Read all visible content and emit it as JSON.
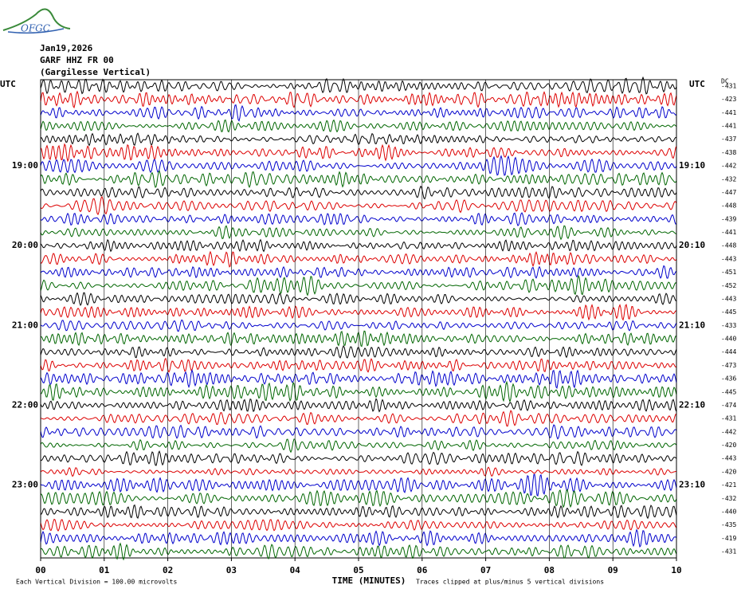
{
  "logo": "OFGC",
  "header": {
    "date": "Jan19,2026",
    "station": "GARF HHZ FR 00",
    "name": "(Gargilesse Vertical)"
  },
  "left_axis": {
    "title": "UTC",
    "labels": [
      "19:00",
      "20:00",
      "21:00",
      "22:00",
      "23:00"
    ]
  },
  "right_axis": {
    "title": "UTC",
    "labels": [
      "19:10",
      "20:10",
      "21:10",
      "22:10",
      "23:10"
    ]
  },
  "dc": {
    "title": "DC",
    "values": [
      -431,
      -423,
      -441,
      -441,
      -437,
      -438,
      -442,
      -432,
      -447,
      -448,
      -439,
      -441,
      -448,
      -443,
      -451,
      -452,
      -443,
      -445,
      -433,
      -440,
      -444,
      -473,
      -436,
      -445,
      -474,
      -431,
      -442,
      -420,
      -443,
      -420,
      -421,
      -432,
      -440,
      -435,
      -419,
      -431
    ]
  },
  "x_axis": {
    "title": "TIME (MINUTES)",
    "ticks": [
      "00",
      "01",
      "02",
      "03",
      "04",
      "05",
      "06",
      "07",
      "08",
      "09",
      "10"
    ]
  },
  "footer": {
    "scale": "Each Vertical Division =  100.00 microvolts",
    "clip": "Traces clipped at plus/minus 5 vertical divisions"
  }
}
